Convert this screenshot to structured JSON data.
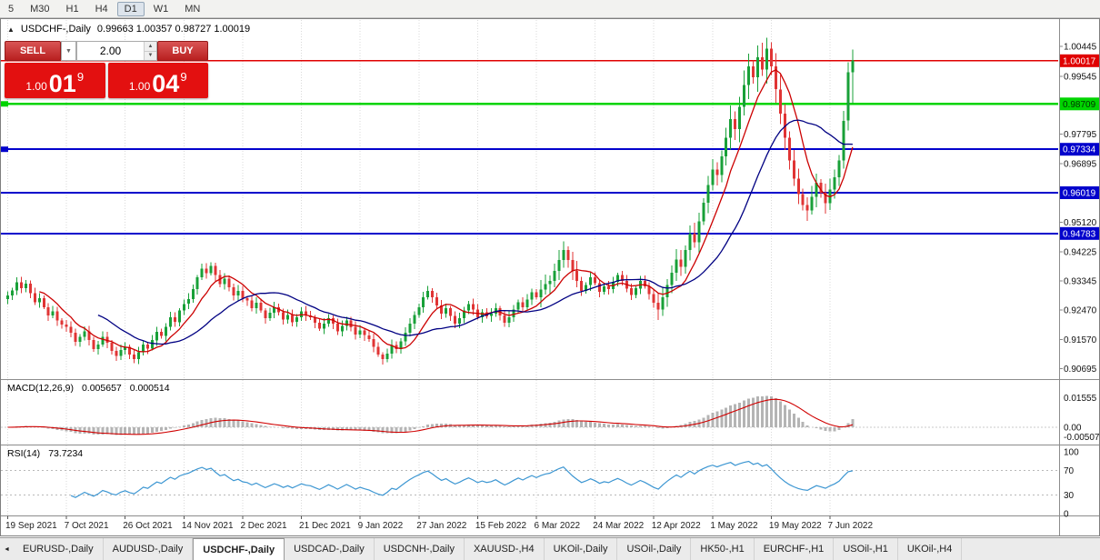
{
  "toolbar": {
    "timeframes": [
      "5",
      "M30",
      "H1",
      "H4",
      "D1",
      "W1",
      "MN"
    ],
    "active_timeframe": "D1"
  },
  "chart_header": {
    "collapse_icon": "▲",
    "symbol_period": "USDCHF-,Daily",
    "ohlc_text": "0.99663 1.00357 0.98727 1.00019"
  },
  "trade_panel": {
    "sell_label": "SELL",
    "buy_label": "BUY",
    "volume": "2.00",
    "dropdown_icon": "▼",
    "spin_up_icon": "▲",
    "spin_down_icon": "▼",
    "sell_price": {
      "prefix": "1.00",
      "big": "01",
      "sup": "9"
    },
    "buy_price": {
      "prefix": "1.00",
      "big": "04",
      "sup": "9"
    }
  },
  "indicators": {
    "macd": {
      "label": "MACD(12,26,9)",
      "value_main": "0.005657",
      "value_signal": "0.000514",
      "axis_labels": [
        {
          "text": "0.01555",
          "value": 0.01555
        },
        {
          "text": "0.00",
          "value": 0
        },
        {
          "text": "-0.00507",
          "value": -0.00507
        }
      ]
    },
    "rsi": {
      "label": "RSI(14)",
      "value": "73.7234",
      "axis_labels": [
        {
          "text": "100",
          "value": 100
        },
        {
          "text": "70",
          "value": 70
        },
        {
          "text": "30",
          "value": 30
        },
        {
          "text": "0",
          "value": 0
        }
      ]
    }
  },
  "dates": [
    "19 Sep 2021",
    "7 Oct 2021",
    "26 Oct 2021",
    "14 Nov 2021",
    "2 Dec 2021",
    "21 Dec 2021",
    "9 Jan 2022",
    "27 Jan 2022",
    "15 Feb 2022",
    "6 Mar 2022",
    "24 Mar 2022",
    "12 Apr 2022",
    "1 May 2022",
    "19 May 2022",
    "7 Jun 2022"
  ],
  "tabs": {
    "scroll_left_icon": "◄",
    "active": "USDCHF-,Daily",
    "items": [
      "EURUSD-,Daily",
      "AUDUSD-,Daily",
      "USDCHF-,Daily",
      "USDCAD-,Daily",
      "USDCNH-,Daily",
      "XAUUSD-,H4",
      "UKOil-,Daily",
      "USOil-,Daily",
      "HK50-,H1",
      "EURCHF-,H1",
      "USOil-,H1",
      "UKOil-,H4"
    ],
    "note": ""
  },
  "chart_data": {
    "type": "candlestick",
    "symbol": "USDCHF-",
    "period": "Daily",
    "title": "USDCHF-,Daily",
    "last_candle": {
      "o": 0.99663,
      "h": 1.00357,
      "l": 0.98727,
      "c": 1.00019
    },
    "first_open": 0.928,
    "closes": [
      0.929,
      0.9306,
      0.933,
      0.9312,
      0.9326,
      0.9298,
      0.927,
      0.9282,
      0.9255,
      0.923,
      0.9242,
      0.9215,
      0.9202,
      0.9195,
      0.9178,
      0.915,
      0.9165,
      0.9182,
      0.9155,
      0.9128,
      0.9142,
      0.9165,
      0.9148,
      0.9122,
      0.9108,
      0.9125,
      0.9135,
      0.9112,
      0.9098,
      0.9118,
      0.9142,
      0.913,
      0.9155,
      0.918,
      0.9168,
      0.9195,
      0.9225,
      0.921,
      0.9245,
      0.9265,
      0.928,
      0.931,
      0.9345,
      0.9372,
      0.9358,
      0.938,
      0.9352,
      0.9325,
      0.9342,
      0.9315,
      0.929,
      0.9305,
      0.9282,
      0.9275,
      0.9252,
      0.9268,
      0.9245,
      0.9222,
      0.9238,
      0.9255,
      0.924,
      0.9218,
      0.9232,
      0.921,
      0.9225,
      0.9242,
      0.923,
      0.9225,
      0.9208,
      0.919,
      0.9205,
      0.9222,
      0.9205,
      0.9182,
      0.9198,
      0.9215,
      0.9195,
      0.9172,
      0.9185,
      0.917,
      0.9158,
      0.9135,
      0.9112,
      0.9098,
      0.9115,
      0.914,
      0.9128,
      0.9152,
      0.9178,
      0.9205,
      0.9232,
      0.9255,
      0.9285,
      0.9305,
      0.9285,
      0.926,
      0.9235,
      0.9252,
      0.9228,
      0.9205,
      0.9222,
      0.9245,
      0.9265,
      0.9248,
      0.9225,
      0.924,
      0.9228,
      0.9235,
      0.9252,
      0.923,
      0.9208,
      0.9225,
      0.9248,
      0.927,
      0.9255,
      0.9278,
      0.93,
      0.9285,
      0.9308,
      0.9325,
      0.9335,
      0.9365,
      0.9398,
      0.9428,
      0.9398,
      0.9365,
      0.9335,
      0.9305,
      0.9322,
      0.9345,
      0.9328,
      0.9302,
      0.9318,
      0.931,
      0.9332,
      0.9352,
      0.9335,
      0.9312,
      0.9292,
      0.9312,
      0.9335,
      0.9318,
      0.9295,
      0.9268,
      0.9248,
      0.9285,
      0.9322,
      0.936,
      0.94,
      0.9378,
      0.9428,
      0.9478,
      0.9452,
      0.9515,
      0.9572,
      0.9625,
      0.9672,
      0.9655,
      0.9712,
      0.9768,
      0.9825,
      0.9795,
      0.9862,
      0.9928,
      0.9985,
      0.9952,
      1.0012,
      0.9975,
      1.0038,
      0.9985,
      0.9915,
      0.9842,
      0.9768,
      0.97,
      0.9645,
      0.9598,
      0.9565,
      0.9548,
      0.959,
      0.9632,
      0.9602,
      0.957,
      0.9612,
      0.9648,
      0.97,
      0.982,
      0.9966,
      1.0002
    ],
    "date_tick_indices": [
      0,
      13,
      26,
      39,
      52,
      65,
      78,
      91,
      104,
      117,
      130,
      143,
      156,
      169,
      182
    ],
    "price_axis_labels": [
      "1.00445",
      "0.99545",
      "0.97795",
      "0.96895",
      "0.95120",
      "0.94225",
      "0.93345",
      "0.92470",
      "0.91570",
      "0.90695"
    ],
    "axis_badges": [
      {
        "text": "1.00017",
        "color": "#E00000",
        "text_color": "#FFFFFF"
      },
      {
        "text": "0.98709",
        "color": "#00D400",
        "text_color": "#003300"
      },
      {
        "text": "0.97334",
        "color": "#0202CC",
        "text_color": "#FFFFFF"
      },
      {
        "text": "0.96019",
        "color": "#0202CC",
        "text_color": "#FFFFFF"
      },
      {
        "text": "0.94783",
        "color": "#0202CC",
        "text_color": "#FFFFFF"
      }
    ],
    "levels": [
      {
        "value": 1.00017,
        "color": "#E00000",
        "width": 1.4,
        "name": "resistance-line-red",
        "edge_marker": false
      },
      {
        "value": 0.98709,
        "color": "#00D400",
        "width": 2.4,
        "name": "support-line-green",
        "edge_marker": true
      },
      {
        "value": 0.97334,
        "color": "#0202CC",
        "width": 2,
        "name": "level-line-blue-1",
        "edge_marker": true
      },
      {
        "value": 0.96019,
        "color": "#0202CC",
        "width": 2,
        "name": "level-line-blue-2",
        "edge_marker": false
      },
      {
        "value": 0.94783,
        "color": "#0202CC",
        "width": 2,
        "name": "level-line-blue-3",
        "edge_marker": false
      }
    ],
    "ma_fast_period": 8,
    "ma_slow_period": 21,
    "macd_params": [
      12,
      26,
      9
    ],
    "rsi_period": 14,
    "colors": {
      "up": "#18A038",
      "down": "#E03434",
      "ma_fast": "#CC0000",
      "ma_slow": "#000082",
      "macd_hist": "#B4B4B4",
      "macd_signal": "#D00000",
      "rsi": "#3C96D2",
      "grid": "#DADADA"
    },
    "y_range": [
      0.904,
      1.0125
    ],
    "rsi_levels": [
      70,
      30
    ]
  }
}
